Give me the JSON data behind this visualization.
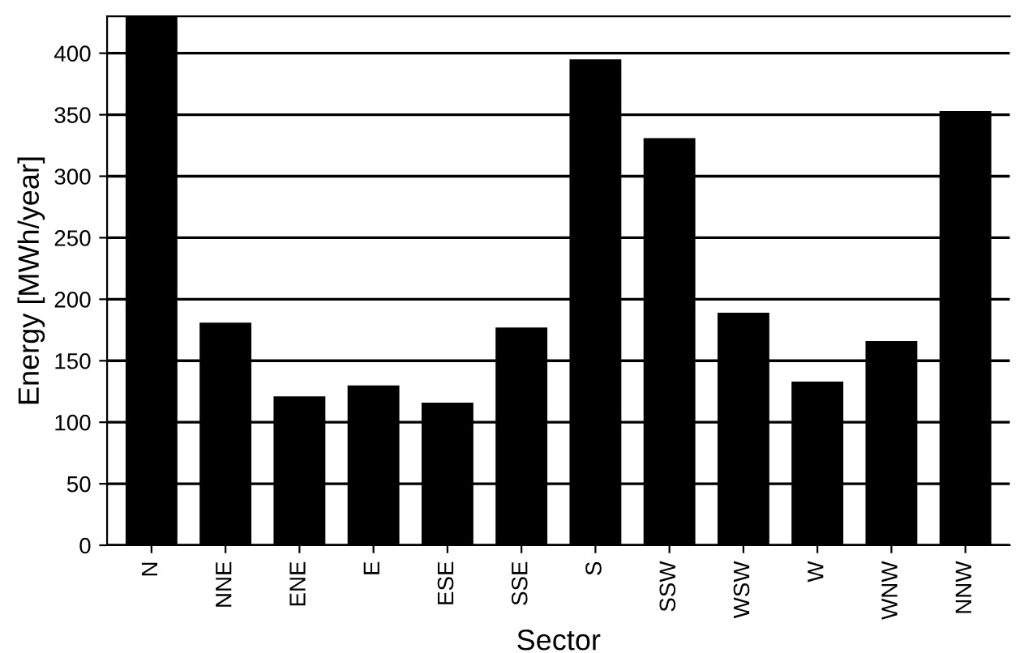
{
  "chart_data": {
    "type": "bar",
    "xlabel": "Sector",
    "ylabel": "Energy [MWh/year]",
    "categories": [
      "N",
      "NNE",
      "ENE",
      "E",
      "ESE",
      "SSE",
      "S",
      "SSW",
      "WSW",
      "W",
      "WNW",
      "NNW"
    ],
    "values": [
      430,
      181,
      121,
      130,
      116,
      177,
      395,
      331,
      189,
      133,
      166,
      353
    ],
    "color": "#000000",
    "ylim": [
      0,
      430
    ],
    "yticks": [
      0,
      50,
      100,
      150,
      200,
      250,
      300,
      350,
      400
    ],
    "grid": "y",
    "legend": false
  }
}
